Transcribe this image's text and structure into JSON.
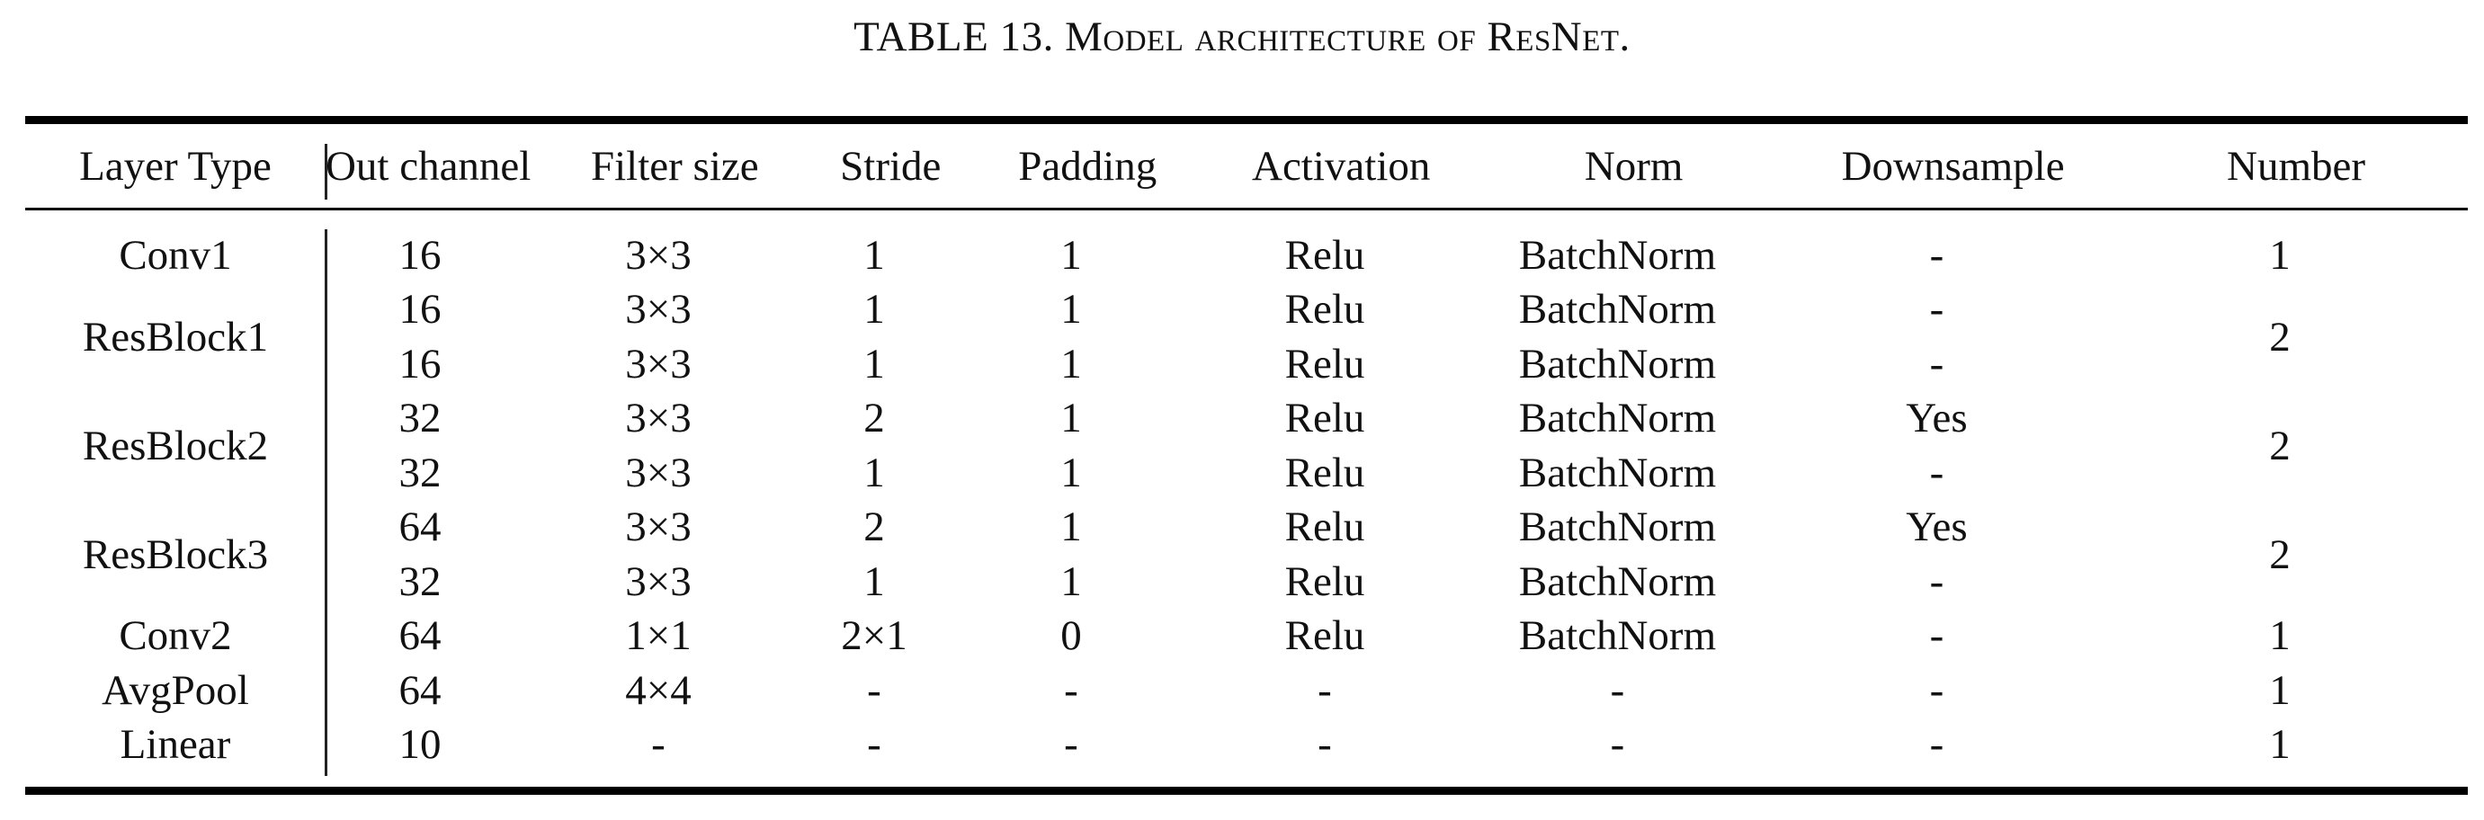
{
  "caption": {
    "label": "TABLE 13.",
    "title": "Model architecture of ResNet."
  },
  "table": {
    "columns": [
      "Layer Type",
      "Out channel",
      "Filter size",
      "Stride",
      "Padding",
      "Activation",
      "Norm",
      "Downsample",
      "Number"
    ],
    "rows": [
      {
        "layer": "Conv1",
        "out_channel": "16",
        "filter_size": "3×3",
        "stride": "1",
        "padding": "1",
        "activation": "Relu",
        "norm": "BatchNorm",
        "downsample": "-",
        "number": "1"
      },
      {
        "layer": "ResBlock1",
        "out_channel": "16",
        "filter_size": "3×3",
        "stride": "1",
        "padding": "1",
        "activation": "Relu",
        "norm": "BatchNorm",
        "downsample": "-",
        "number": "2"
      },
      {
        "layer": "",
        "out_channel": "16",
        "filter_size": "3×3",
        "stride": "1",
        "padding": "1",
        "activation": "Relu",
        "norm": "BatchNorm",
        "downsample": "-",
        "number": ""
      },
      {
        "layer": "ResBlock2",
        "out_channel": "32",
        "filter_size": "3×3",
        "stride": "2",
        "padding": "1",
        "activation": "Relu",
        "norm": "BatchNorm",
        "downsample": "Yes",
        "number": "2"
      },
      {
        "layer": "",
        "out_channel": "32",
        "filter_size": "3×3",
        "stride": "1",
        "padding": "1",
        "activation": "Relu",
        "norm": "BatchNorm",
        "downsample": "-",
        "number": ""
      },
      {
        "layer": "ResBlock3",
        "out_channel": "64",
        "filter_size": "3×3",
        "stride": "2",
        "padding": "1",
        "activation": "Relu",
        "norm": "BatchNorm",
        "downsample": "Yes",
        "number": "2"
      },
      {
        "layer": "",
        "out_channel": "32",
        "filter_size": "3×3",
        "stride": "1",
        "padding": "1",
        "activation": "Relu",
        "norm": "BatchNorm",
        "downsample": "-",
        "number": ""
      },
      {
        "layer": "Conv2",
        "out_channel": "64",
        "filter_size": "1×1",
        "stride": "2×1",
        "padding": "0",
        "activation": "Relu",
        "norm": "BatchNorm",
        "downsample": "-",
        "number": "1"
      },
      {
        "layer": "AvgPool",
        "out_channel": "64",
        "filter_size": "4×4",
        "stride": "-",
        "padding": "-",
        "activation": "-",
        "norm": "-",
        "downsample": "-",
        "number": "1"
      },
      {
        "layer": "Linear",
        "out_channel": "10",
        "filter_size": "-",
        "stride": "-",
        "padding": "-",
        "activation": "-",
        "norm": "-",
        "downsample": "-",
        "number": "1"
      }
    ]
  }
}
